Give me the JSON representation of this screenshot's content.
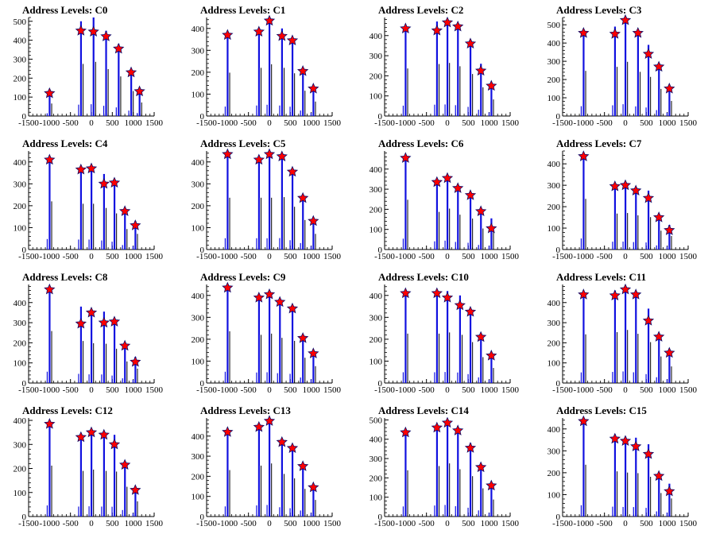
{
  "figure": {
    "xticks": [
      -1500,
      -1000,
      -500,
      0,
      500,
      1000,
      1500
    ],
    "colors": {
      "bar": "#1010e0",
      "marker_fill": "#ff0000",
      "marker_stroke": "#0a0a6a",
      "axis": "#000000",
      "thin_bar": "#000000"
    }
  },
  "chart_data": [
    {
      "type": "bar",
      "title": "Address Levels: C0",
      "xlim": [
        -1500,
        1500
      ],
      "ylim": [
        0,
        520
      ],
      "yticks": [
        0,
        100,
        200,
        300,
        400,
        500
      ],
      "peaks_x": [
        -1000,
        -250,
        50,
        350,
        650,
        950,
        1150
      ],
      "peak_marker_values": [
        120,
        450,
        445,
        420,
        355,
        230,
        130
      ],
      "bar_heights": [
        120,
        500,
        520,
        450,
        380,
        240,
        130
      ]
    },
    {
      "type": "bar",
      "title": "Address Levels: C1",
      "xlim": [
        -1500,
        1500
      ],
      "ylim": [
        0,
        450
      ],
      "yticks": [
        0,
        100,
        200,
        300,
        400
      ],
      "peaks_x": [
        -1000,
        -250,
        0,
        300,
        550,
        800,
        1050
      ],
      "peak_marker_values": [
        370,
        385,
        435,
        365,
        345,
        205,
        125
      ],
      "bar_heights": [
        360,
        400,
        430,
        400,
        355,
        210,
        120
      ]
    },
    {
      "type": "bar",
      "title": "Address Levels: C2",
      "xlim": [
        -1500,
        1500
      ],
      "ylim": [
        0,
        490
      ],
      "yticks": [
        0,
        100,
        200,
        300,
        400
      ],
      "peaks_x": [
        -1000,
        -250,
        0,
        250,
        550,
        800,
        1050
      ],
      "peak_marker_values": [
        435,
        425,
        465,
        445,
        360,
        225,
        150
      ],
      "bar_heights": [
        430,
        470,
        480,
        450,
        380,
        260,
        150
      ]
    },
    {
      "type": "bar",
      "title": "Address Levels: C3",
      "xlim": [
        -1500,
        1500
      ],
      "ylim": [
        0,
        540
      ],
      "yticks": [
        0,
        100,
        200,
        300,
        400,
        500
      ],
      "peaks_x": [
        -1000,
        -250,
        0,
        300,
        550,
        800,
        1050
      ],
      "peak_marker_values": [
        455,
        450,
        525,
        455,
        340,
        270,
        150
      ],
      "bar_heights": [
        450,
        490,
        540,
        440,
        390,
        270,
        150
      ]
    },
    {
      "type": "bar",
      "title": "Address Levels: C4",
      "xlim": [
        -1500,
        1500
      ],
      "ylim": [
        0,
        450
      ],
      "yticks": [
        0,
        100,
        200,
        300,
        400
      ],
      "peaks_x": [
        -1000,
        -250,
        0,
        300,
        550,
        800,
        1050
      ],
      "peak_marker_values": [
        410,
        365,
        370,
        300,
        305,
        175,
        110
      ],
      "bar_heights": [
        400,
        380,
        380,
        345,
        300,
        170,
        130
      ]
    },
    {
      "type": "bar",
      "title": "Address Levels: C5",
      "xlim": [
        -1500,
        1500
      ],
      "ylim": [
        0,
        450
      ],
      "yticks": [
        0,
        100,
        200,
        300,
        400
      ],
      "peaks_x": [
        -1000,
        -250,
        0,
        300,
        550,
        800,
        1050
      ],
      "peak_marker_values": [
        435,
        410,
        435,
        425,
        355,
        235,
        130
      ],
      "bar_heights": [
        430,
        430,
        430,
        435,
        355,
        245,
        130
      ]
    },
    {
      "type": "bar",
      "title": "Address Levels: C6",
      "xlim": [
        -1500,
        1500
      ],
      "ylim": [
        0,
        490
      ],
      "yticks": [
        0,
        100,
        200,
        300,
        400
      ],
      "peaks_x": [
        -1000,
        -250,
        0,
        250,
        550,
        800,
        1050
      ],
      "peak_marker_values": [
        455,
        335,
        355,
        305,
        270,
        190,
        105
      ],
      "bar_heights": [
        450,
        340,
        370,
        315,
        280,
        190,
        155
      ]
    },
    {
      "type": "bar",
      "title": "Address Levels: C7",
      "xlim": [
        -1500,
        1500
      ],
      "ylim": [
        0,
        460
      ],
      "yticks": [
        0,
        100,
        200,
        300,
        400
      ],
      "peaks_x": [
        -1000,
        -250,
        0,
        250,
        550,
        800,
        1050
      ],
      "peak_marker_values": [
        435,
        295,
        300,
        275,
        240,
        150,
        90
      ],
      "bar_heights": [
        430,
        305,
        310,
        290,
        275,
        160,
        115
      ]
    },
    {
      "type": "bar",
      "title": "Address Levels: C8",
      "xlim": [
        -1500,
        1500
      ],
      "ylim": [
        0,
        490
      ],
      "yticks": [
        0,
        100,
        200,
        300,
        400
      ],
      "peaks_x": [
        -1000,
        -250,
        0,
        300,
        550,
        800,
        1050
      ],
      "peak_marker_values": [
        465,
        295,
        350,
        300,
        305,
        185,
        105
      ],
      "bar_heights": [
        470,
        380,
        360,
        355,
        310,
        195,
        130
      ]
    },
    {
      "type": "bar",
      "title": "Address Levels: C9",
      "xlim": [
        -1500,
        1500
      ],
      "ylim": [
        0,
        450
      ],
      "yticks": [
        0,
        100,
        200,
        300,
        400
      ],
      "peaks_x": [
        -1000,
        -250,
        0,
        250,
        550,
        800,
        1050
      ],
      "peak_marker_values": [
        435,
        390,
        405,
        370,
        340,
        205,
        135
      ],
      "bar_heights": [
        430,
        400,
        410,
        375,
        350,
        210,
        140
      ]
    },
    {
      "type": "bar",
      "title": "Address Levels: C10",
      "xlim": [
        -1500,
        1500
      ],
      "ylim": [
        0,
        450
      ],
      "yticks": [
        0,
        100,
        200,
        300,
        400
      ],
      "peaks_x": [
        -1000,
        -250,
        0,
        300,
        550,
        800,
        1050
      ],
      "peak_marker_values": [
        410,
        410,
        390,
        355,
        325,
        210,
        125
      ],
      "bar_heights": [
        410,
        410,
        420,
        400,
        340,
        215,
        125
      ]
    },
    {
      "type": "bar",
      "title": "Address Levels: C11",
      "xlim": [
        -1500,
        1500
      ],
      "ylim": [
        0,
        490
      ],
      "yticks": [
        0,
        100,
        200,
        300,
        400
      ],
      "peaks_x": [
        -1000,
        -250,
        0,
        250,
        550,
        800,
        1050
      ],
      "peak_marker_values": [
        440,
        435,
        465,
        440,
        310,
        230,
        150
      ],
      "bar_heights": [
        440,
        460,
        480,
        445,
        370,
        240,
        150
      ]
    },
    {
      "type": "bar",
      "title": "Address Levels: C12",
      "xlim": [
        -1500,
        1500
      ],
      "ylim": [
        0,
        410
      ],
      "yticks": [
        0,
        100,
        200,
        300,
        400
      ],
      "peaks_x": [
        -1000,
        -250,
        0,
        300,
        550,
        800,
        1050
      ],
      "peak_marker_values": [
        385,
        330,
        350,
        340,
        300,
        215,
        110
      ],
      "bar_heights": [
        385,
        345,
        355,
        345,
        340,
        225,
        115
      ]
    },
    {
      "type": "bar",
      "title": "Address Levels: C13",
      "xlim": [
        -1500,
        1500
      ],
      "ylim": [
        0,
        490
      ],
      "yticks": [
        0,
        100,
        200,
        300,
        400
      ],
      "peaks_x": [
        -1000,
        -250,
        0,
        300,
        550,
        800,
        1050
      ],
      "peak_marker_values": [
        420,
        445,
        475,
        370,
        340,
        250,
        145
      ],
      "bar_heights": [
        420,
        460,
        480,
        385,
        345,
        250,
        150
      ]
    },
    {
      "type": "bar",
      "title": "Address Levels: C14",
      "xlim": [
        -1500,
        1500
      ],
      "ylim": [
        0,
        510
      ],
      "yticks": [
        0,
        100,
        200,
        300,
        400,
        500
      ],
      "peaks_x": [
        -1000,
        -250,
        0,
        250,
        550,
        800,
        1050
      ],
      "peak_marker_values": [
        435,
        460,
        485,
        445,
        355,
        255,
        160
      ],
      "bar_heights": [
        435,
        475,
        500,
        445,
        380,
        265,
        160
      ]
    },
    {
      "type": "bar",
      "title": "Address Levels: C15",
      "xlim": [
        -1500,
        1500
      ],
      "ylim": [
        0,
        450
      ],
      "yticks": [
        0,
        100,
        200,
        300,
        400
      ],
      "peaks_x": [
        -1000,
        -250,
        0,
        250,
        550,
        800,
        1050
      ],
      "peak_marker_values": [
        435,
        355,
        345,
        320,
        285,
        185,
        115
      ],
      "bar_heights": [
        430,
        375,
        365,
        360,
        330,
        195,
        150
      ]
    }
  ]
}
